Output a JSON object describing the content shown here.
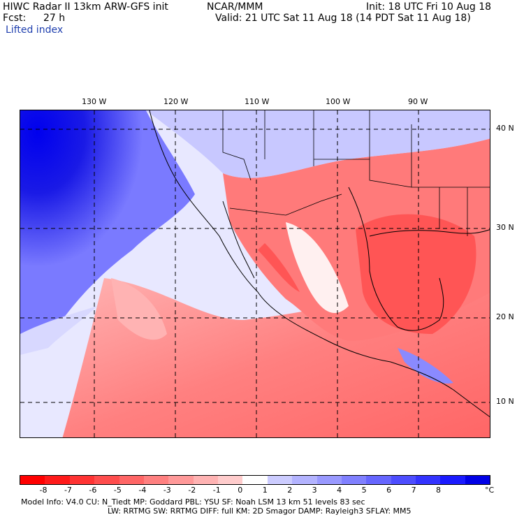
{
  "header": {
    "title": "HIWC Radar II 13km ARW-GFS init",
    "agency": "NCAR/MMM",
    "init": "Init: 18 UTC Fri 10 Aug 18",
    "fcst_label": "Fcst:",
    "fcst_value": "27 h",
    "valid": "Valid: 21 UTC Sat 11 Aug 18 (14 PDT Sat 11 Aug 18)",
    "field": "Lifted index"
  },
  "map": {
    "lon_labels": [
      "130 W",
      "120 W",
      "110 W",
      "100 W",
      "90 W"
    ],
    "lat_labels": [
      "40 N",
      "30 N",
      "20 N",
      "10 N"
    ]
  },
  "colorbar": {
    "ticks": [
      "-8",
      "-7",
      "-6",
      "-5",
      "-4",
      "-3",
      "-2",
      "-1",
      "0",
      "1",
      "2",
      "3",
      "4",
      "5",
      "6",
      "7",
      "8"
    ],
    "unit": "°C",
    "colors": [
      "#ff0000",
      "#ff1a1a",
      "#ff3333",
      "#ff4d4d",
      "#ff6666",
      "#ff8080",
      "#ff9999",
      "#ffb3b3",
      "#ffcccc",
      "#ffffff",
      "#ccccff",
      "#b3b3ff",
      "#9999ff",
      "#8080ff",
      "#6666ff",
      "#4d4dff",
      "#3333ff",
      "#1a1aff",
      "#0000e6"
    ]
  },
  "footer": {
    "line1": "Model Info: V4.0     CU: N_Tiedt  MP: Goddard     PBL: YSU       SF: Noah LSM      13 km    51 levels    83 sec",
    "line2": "LW: RRTMG    SW: RRTMG   DIFF: full    KM: 2D Smagor DAMP: Rayleigh3  SFLAY: MM5"
  }
}
